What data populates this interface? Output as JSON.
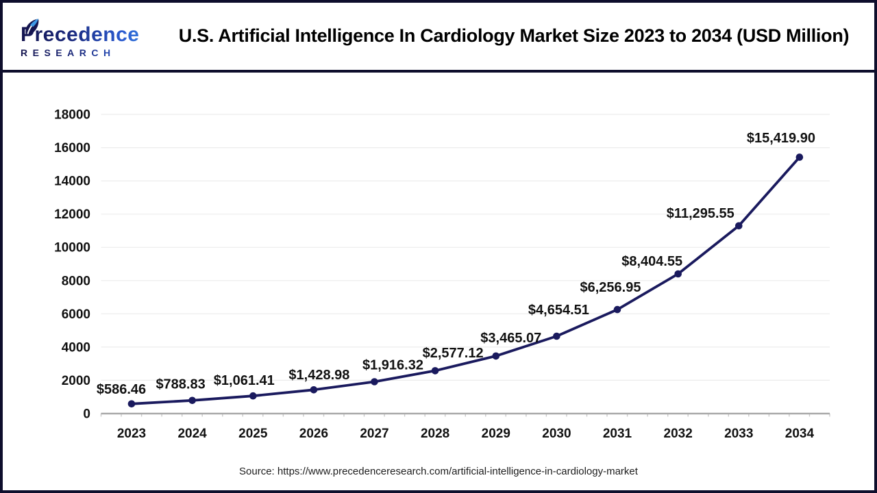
{
  "header": {
    "logo": {
      "name": "Precedence",
      "subtitle": "RESEARCH"
    },
    "title": "U.S. Artificial Intelligence In Cardiology Market Size 2023 to 2034 (USD Million)"
  },
  "chart_data": {
    "type": "line",
    "title": "U.S. Artificial Intelligence In Cardiology Market Size 2023 to 2034 (USD Million)",
    "categories": [
      "2023",
      "2024",
      "2025",
      "2026",
      "2027",
      "2028",
      "2029",
      "2030",
      "2031",
      "2032",
      "2033",
      "2034"
    ],
    "series": [
      {
        "name": "U.S. Artificial Intelligence in Cardiology Market Size (USD Million)",
        "values": [
          586.46,
          788.83,
          1061.41,
          1428.98,
          1916.32,
          2577.12,
          3465.07,
          4654.51,
          6256.95,
          8404.55,
          11295.55,
          15419.9
        ]
      }
    ],
    "point_labels": [
      "$586.46",
      "$788.83",
      "$1,061.41",
      "$1,428.98",
      "$1,916.32",
      "$2,577.12",
      "$3,465.07",
      "$4,654.51",
      "$6,256.95",
      "$8,404.55",
      "$11,295.55",
      "$15,419.90"
    ],
    "xlabel": "",
    "ylabel": "",
    "ylim": [
      0,
      18000
    ],
    "ytick_step": 2000,
    "grid": true,
    "legend": false,
    "line_color": "#1a1a5e",
    "grid_color": "#ececec",
    "axis_color": "#a9a9a9",
    "label_color": "#111111"
  },
  "footer": {
    "source": "Source: https://www.precedenceresearch.com/artificial-intelligence-in-cardiology-market"
  }
}
